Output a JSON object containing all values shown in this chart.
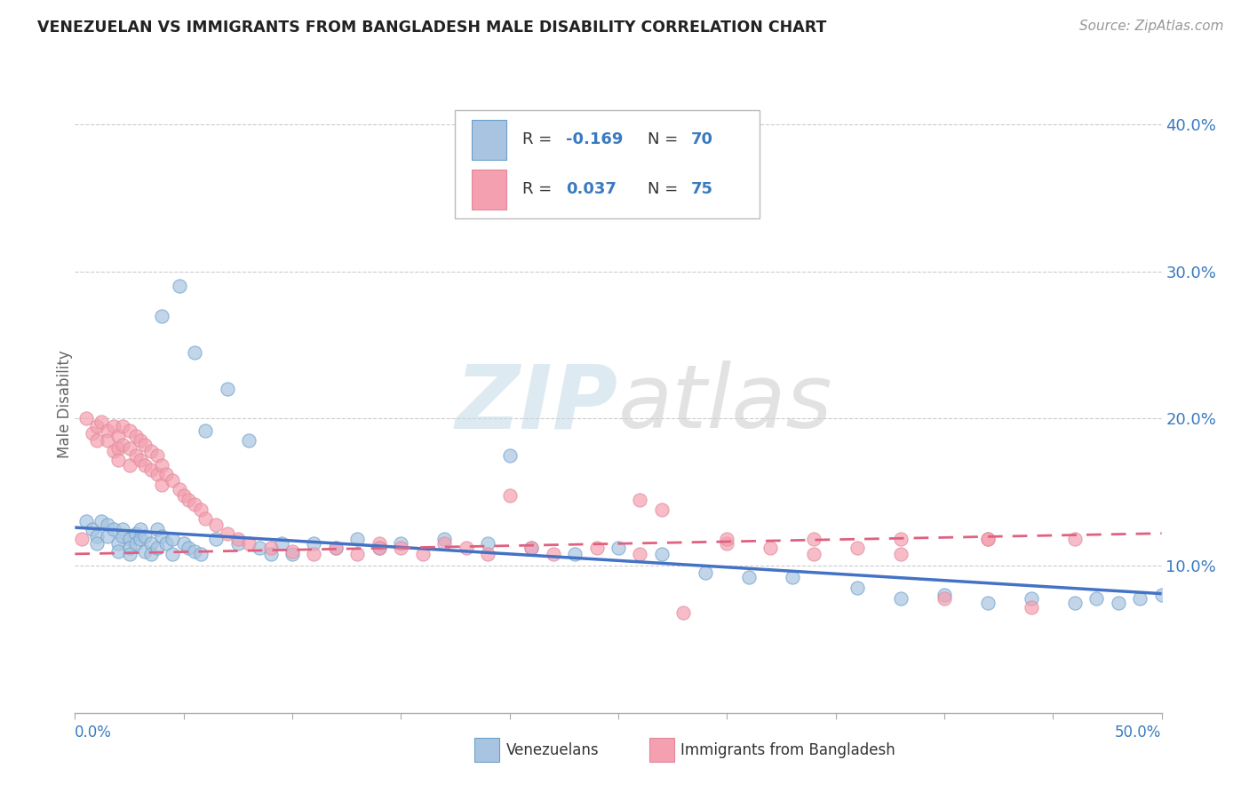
{
  "title": "VENEZUELAN VS IMMIGRANTS FROM BANGLADESH MALE DISABILITY CORRELATION CHART",
  "source": "Source: ZipAtlas.com",
  "ylabel": "Male Disability",
  "x_min": 0.0,
  "x_max": 0.5,
  "y_min": 0.0,
  "y_max": 0.42,
  "y_ticks": [
    0.1,
    0.2,
    0.3,
    0.4
  ],
  "y_tick_labels": [
    "10.0%",
    "20.0%",
    "30.0%",
    "40.0%"
  ],
  "x_ticks": [
    0.0,
    0.05,
    0.1,
    0.15,
    0.2,
    0.25,
    0.3,
    0.35,
    0.4,
    0.45,
    0.5
  ],
  "R_venezuelan": -0.169,
  "N_venezuelan": 70,
  "R_bangladesh": 0.037,
  "N_bangladesh": 75,
  "color_venezuelan": "#a8c4e0",
  "color_bangladesh": "#f4a0b0",
  "trend_color_venezuelan": "#4472c4",
  "trend_color_bangladesh": "#e06080",
  "watermark_color": "#d8e8f0",
  "watermark_color2": "#d8d8d8",
  "legend_labels": [
    "Venezuelans",
    "Immigrants from Bangladesh"
  ],
  "venezuelan_x": [
    0.005,
    0.008,
    0.01,
    0.01,
    0.012,
    0.015,
    0.015,
    0.018,
    0.02,
    0.02,
    0.022,
    0.022,
    0.025,
    0.025,
    0.025,
    0.028,
    0.028,
    0.03,
    0.03,
    0.032,
    0.032,
    0.035,
    0.035,
    0.038,
    0.038,
    0.04,
    0.04,
    0.042,
    0.045,
    0.045,
    0.048,
    0.05,
    0.052,
    0.055,
    0.055,
    0.058,
    0.06,
    0.065,
    0.07,
    0.075,
    0.08,
    0.085,
    0.09,
    0.095,
    0.1,
    0.11,
    0.12,
    0.13,
    0.14,
    0.15,
    0.17,
    0.19,
    0.2,
    0.21,
    0.23,
    0.25,
    0.27,
    0.29,
    0.31,
    0.33,
    0.36,
    0.38,
    0.4,
    0.42,
    0.44,
    0.46,
    0.47,
    0.48,
    0.49,
    0.5
  ],
  "venezuelan_y": [
    0.13,
    0.125,
    0.12,
    0.115,
    0.13,
    0.128,
    0.12,
    0.125,
    0.115,
    0.11,
    0.125,
    0.12,
    0.118,
    0.112,
    0.108,
    0.122,
    0.115,
    0.125,
    0.118,
    0.12,
    0.11,
    0.115,
    0.108,
    0.125,
    0.112,
    0.27,
    0.12,
    0.115,
    0.118,
    0.108,
    0.29,
    0.115,
    0.112,
    0.245,
    0.11,
    0.108,
    0.192,
    0.118,
    0.22,
    0.115,
    0.185,
    0.112,
    0.108,
    0.115,
    0.108,
    0.115,
    0.112,
    0.118,
    0.112,
    0.115,
    0.118,
    0.115,
    0.175,
    0.112,
    0.108,
    0.112,
    0.108,
    0.095,
    0.092,
    0.092,
    0.085,
    0.078,
    0.08,
    0.075,
    0.078,
    0.075,
    0.078,
    0.075,
    0.078,
    0.08
  ],
  "bangladesh_x": [
    0.003,
    0.005,
    0.008,
    0.01,
    0.01,
    0.012,
    0.015,
    0.015,
    0.018,
    0.018,
    0.02,
    0.02,
    0.02,
    0.022,
    0.022,
    0.025,
    0.025,
    0.025,
    0.028,
    0.028,
    0.03,
    0.03,
    0.032,
    0.032,
    0.035,
    0.035,
    0.038,
    0.038,
    0.04,
    0.04,
    0.042,
    0.045,
    0.048,
    0.05,
    0.052,
    0.055,
    0.058,
    0.06,
    0.065,
    0.07,
    0.075,
    0.08,
    0.09,
    0.1,
    0.11,
    0.12,
    0.13,
    0.14,
    0.15,
    0.16,
    0.17,
    0.18,
    0.19,
    0.2,
    0.21,
    0.22,
    0.24,
    0.26,
    0.28,
    0.3,
    0.32,
    0.34,
    0.36,
    0.38,
    0.4,
    0.42,
    0.44,
    0.46,
    0.14,
    0.26,
    0.27,
    0.3,
    0.34,
    0.38,
    0.42
  ],
  "bangladesh_y": [
    0.118,
    0.2,
    0.19,
    0.195,
    0.185,
    0.198,
    0.192,
    0.185,
    0.195,
    0.178,
    0.188,
    0.18,
    0.172,
    0.195,
    0.182,
    0.192,
    0.18,
    0.168,
    0.188,
    0.175,
    0.185,
    0.172,
    0.182,
    0.168,
    0.178,
    0.165,
    0.175,
    0.162,
    0.168,
    0.155,
    0.162,
    0.158,
    0.152,
    0.148,
    0.145,
    0.142,
    0.138,
    0.132,
    0.128,
    0.122,
    0.118,
    0.115,
    0.112,
    0.11,
    0.108,
    0.112,
    0.108,
    0.115,
    0.112,
    0.108,
    0.115,
    0.112,
    0.108,
    0.148,
    0.112,
    0.108,
    0.112,
    0.108,
    0.068,
    0.115,
    0.112,
    0.108,
    0.112,
    0.108,
    0.078,
    0.118,
    0.072,
    0.118,
    0.112,
    0.145,
    0.138,
    0.118,
    0.118,
    0.118,
    0.118
  ]
}
